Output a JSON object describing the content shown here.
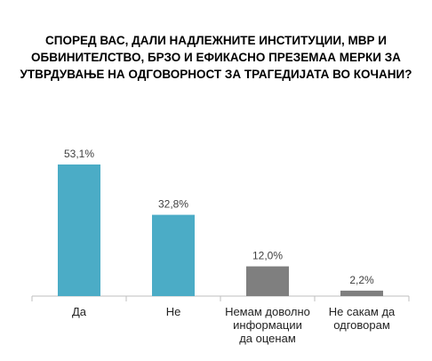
{
  "title_lines": [
    "СПОРЕД ВАС, ДАЛИ НАДЛЕЖНИТЕ ИНСТИТУЦИИ, МВР И",
    "ОБВИНИТЕЛСТВО, БРЗО И ЕФИКАСНО ПРЕЗЕМАА МЕРКИ ЗА",
    "УТВРДУВАЊЕ НА ОДГОВОРНОСТ ЗА ТРАГЕДИЈАТА ВО КОЧАНИ?"
  ],
  "chart_data": {
    "type": "bar",
    "title": "СПОРЕД ВАС, ДАЛИ НАДЛЕЖНИТЕ ИНСТИТУЦИИ, МВР И ОБВИНИТЕЛСТВО, БРЗО И ЕФИКАСНО ПРЕЗЕМАА МЕРКИ ЗА УТВРДУВАЊЕ НА ОДГОВОРНОСТ ЗА ТРАГЕДИЈАТА ВО КОЧАНИ?",
    "categories": [
      "Да",
      "Не",
      "Немам доволно информации да оценам",
      "Не сакам да одговорам"
    ],
    "category_lines": [
      [
        "Да"
      ],
      [
        "Не"
      ],
      [
        "Немам доволно",
        "информации",
        "да оценам"
      ],
      [
        "Не сакам да",
        "одговорам"
      ]
    ],
    "values": [
      53.1,
      32.8,
      12.0,
      2.2
    ],
    "data_labels": [
      "53,1%",
      "32,8%",
      "12,0%",
      "2,2%"
    ],
    "colors": [
      "#4bacc6",
      "#4bacc6",
      "#7f7f7f",
      "#7f7f7f"
    ],
    "axis_color": "#bfbfbf",
    "ylim": [
      0,
      53.1
    ],
    "grid": false,
    "legend": "none"
  }
}
